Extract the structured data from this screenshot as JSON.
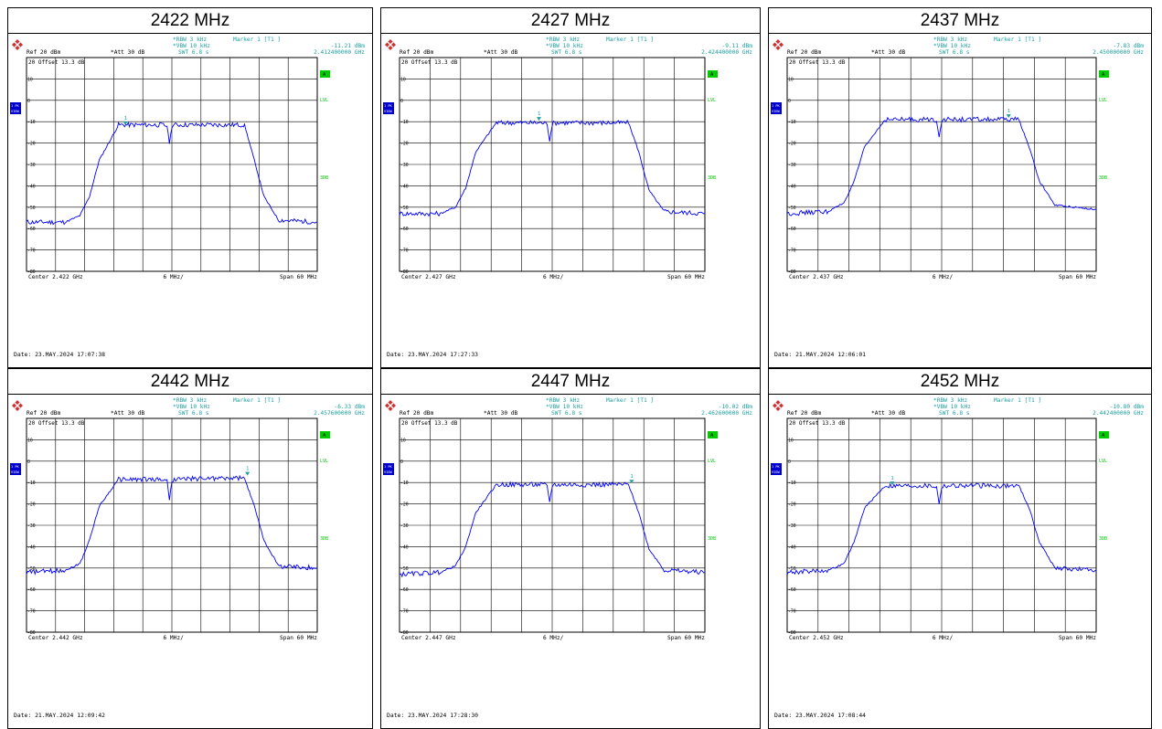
{
  "colors": {
    "trace": "#0000ff",
    "grid": "#000000",
    "header_text": "#1fa0a0",
    "marker": "#1fa0a0",
    "green_label": "#00cc00",
    "side_badge": "#0000cc"
  },
  "common": {
    "logo_icon": "rohde-schwarz-logo-icon",
    "rbw": "RBW 3 kHz",
    "vbw": "VBW 10 kHz",
    "swt": "SWT 6.8 s",
    "ref": "Ref  20 dBm",
    "att": "Att  30 dB",
    "offset": "20 Offset  13.3 dB",
    "marker_title": "Marker 1 [T1 ]",
    "side_labels": [
      "A",
      "LVL",
      "3DB"
    ],
    "badge_text": "1 PK VIEW",
    "div_label": "6 MHz/",
    "span_label": "Span 60 MHz",
    "y_tick_labels": [
      "10",
      "0",
      "-10",
      "-20",
      "-30",
      "-40",
      "-50",
      "-60",
      "-70",
      "-80"
    ]
  },
  "panels": [
    {
      "title": "2422 MHz",
      "marker_level": "-11.21 dBm",
      "marker_freq": "2.412400000 GHz",
      "center": "Center 2.422 GHz",
      "date": "Date: 23.MAY.2024  17:07:38",
      "chart_data": {
        "type": "line",
        "xlabel": "",
        "ylabel": "",
        "xlim_mhz": [
          2392,
          2452
        ],
        "ylim_dbm": [
          -80,
          20
        ],
        "series": [
          {
            "x": [
              2392,
              2400,
              2403,
              2405,
              2407,
              2411,
              2420,
              2421,
              2421.5,
              2422,
              2422.5,
              2423,
              2430,
              2437,
              2439,
              2441,
              2444,
              2452
            ],
            "y": [
              -57,
              -57,
              -54,
              -45,
              -28,
              -11.5,
              -11.5,
              -12,
              -20,
              -12,
              -11.5,
              -11.5,
              -11.5,
              -11.5,
              -28,
              -45,
              -56,
              -57
            ]
          }
        ],
        "marker": {
          "x": 2412.4,
          "y": -11.21,
          "label": "1"
        }
      }
    },
    {
      "title": "2427 MHz",
      "marker_level": "-9.11 dBm",
      "marker_freq": "2.424400000 GHz",
      "center": "Center 2.427 GHz",
      "date": "Date: 23.MAY.2024  17:27:33",
      "chart_data": {
        "type": "line",
        "xlabel": "",
        "ylabel": "",
        "xlim_mhz": [
          2397,
          2457
        ],
        "ylim_dbm": [
          -80,
          20
        ],
        "series": [
          {
            "x": [
              2397,
              2405,
              2408,
              2410,
              2412,
              2416,
              2425,
              2426,
              2426.5,
              2427,
              2427.5,
              2428,
              2435,
              2442,
              2444,
              2446,
              2449,
              2457
            ],
            "y": [
              -53,
              -53,
              -50,
              -41,
              -24,
              -10.5,
              -10.5,
              -11,
              -19,
              -11,
              -10.5,
              -10.5,
              -10.5,
              -10.5,
              -24,
              -42,
              -52,
              -53
            ]
          }
        ],
        "marker": {
          "x": 2424.4,
          "y": -9.11,
          "label": "1"
        }
      }
    },
    {
      "title": "2437 MHz",
      "marker_level": "-7.83 dBm",
      "marker_freq": "2.450000000 GHz",
      "center": "Center 2.437 GHz",
      "date": "Date: 21.MAY.2024  12:06:01",
      "chart_data": {
        "type": "line",
        "xlabel": "",
        "ylabel": "",
        "xlim_mhz": [
          2407,
          2467
        ],
        "ylim_dbm": [
          -80,
          20
        ],
        "series": [
          {
            "x": [
              2407,
              2415,
              2418,
              2420,
              2422,
              2426,
              2435,
              2436,
              2436.5,
              2437,
              2437.5,
              2438,
              2445,
              2452,
              2454,
              2456,
              2459,
              2467
            ],
            "y": [
              -53,
              -52,
              -48,
              -38,
              -22,
              -9,
              -9,
              -9.5,
              -17,
              -9.5,
              -9,
              -9,
              -9,
              -9,
              -22,
              -38,
              -49,
              -51
            ]
          }
        ],
        "marker": {
          "x": 2450.0,
          "y": -7.83,
          "label": "1"
        }
      }
    },
    {
      "title": "2442 MHz",
      "marker_level": "-6.33 dBm",
      "marker_freq": "2.457600000 GHz",
      "center": "Center 2.442 GHz",
      "date": "Date: 21.MAY.2024  12:09:42",
      "chart_data": {
        "type": "line",
        "xlabel": "",
        "ylabel": "",
        "xlim_mhz": [
          2412,
          2472
        ],
        "ylim_dbm": [
          -80,
          20
        ],
        "series": [
          {
            "x": [
              2412,
              2420,
              2423,
              2425,
              2427,
              2431,
              2440,
              2441,
              2441.5,
              2442,
              2442.5,
              2443,
              2450,
              2457,
              2459,
              2461,
              2464,
              2472
            ],
            "y": [
              -52,
              -51,
              -48,
              -37,
              -21,
              -8.5,
              -8.5,
              -9,
              -18,
              -9,
              -8.5,
              -8.5,
              -8,
              -8,
              -21,
              -37,
              -49,
              -50
            ]
          }
        ],
        "marker": {
          "x": 2457.6,
          "y": -6.33,
          "label": "1"
        }
      }
    },
    {
      "title": "2447 MHz",
      "marker_level": "-10.02 dBm",
      "marker_freq": "2.462600000 GHz",
      "center": "Center 2.447 GHz",
      "date": "Date: 23.MAY.2024  17:28:30",
      "chart_data": {
        "type": "line",
        "xlabel": "",
        "ylabel": "",
        "xlim_mhz": [
          2417,
          2477
        ],
        "ylim_dbm": [
          -80,
          20
        ],
        "series": [
          {
            "x": [
              2417,
              2425,
              2428,
              2430,
              2432,
              2436,
              2445,
              2446,
              2446.5,
              2447,
              2447.5,
              2448,
              2455,
              2462,
              2464,
              2466,
              2469,
              2477
            ],
            "y": [
              -53,
              -52,
              -49,
              -40,
              -24,
              -11,
              -11,
              -11.5,
              -19,
              -11.5,
              -11,
              -11,
              -11,
              -11,
              -24,
              -41,
              -51,
              -52
            ]
          }
        ],
        "marker": {
          "x": 2462.6,
          "y": -10.02,
          "label": "1"
        }
      }
    },
    {
      "title": "2452 MHz",
      "marker_level": "-10.80 dBm",
      "marker_freq": "2.442400000 GHz",
      "center": "Center 2.452 GHz",
      "date": "Date: 23.MAY.2024  17:08:44",
      "chart_data": {
        "type": "line",
        "xlabel": "",
        "ylabel": "",
        "xlim_mhz": [
          2422,
          2482
        ],
        "ylim_dbm": [
          -80,
          20
        ],
        "series": [
          {
            "x": [
              2422,
              2430,
              2433,
              2435,
              2437,
              2441,
              2450,
              2451,
              2451.5,
              2452,
              2452.5,
              2453,
              2460,
              2467,
              2469,
              2471,
              2474,
              2482
            ],
            "y": [
              -52,
              -51,
              -48,
              -38,
              -22,
              -11.5,
              -11.5,
              -12,
              -20,
              -12,
              -11.5,
              -11.5,
              -11.5,
              -11.5,
              -22,
              -38,
              -50,
              -51
            ]
          }
        ],
        "marker": {
          "x": 2442.4,
          "y": -10.8,
          "label": "1"
        }
      }
    }
  ]
}
